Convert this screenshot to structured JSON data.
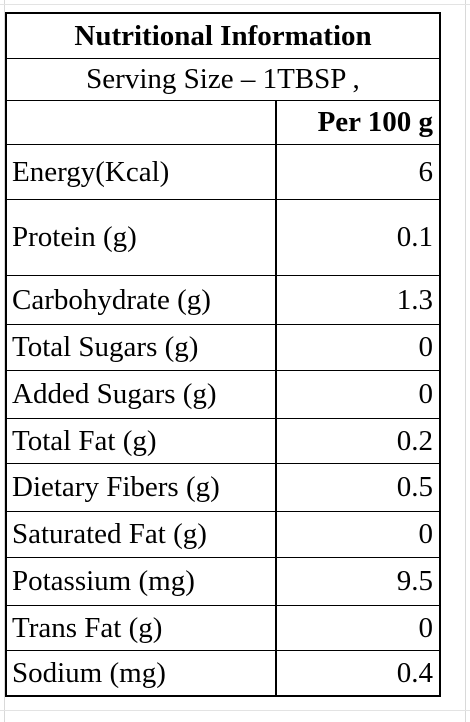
{
  "table": {
    "title": "Nutritional Information",
    "serving": "Serving Size – 1TBSP ,",
    "header_label": "",
    "header_value": "Per 100 g",
    "rows": [
      {
        "label": "Energy(Kcal)",
        "value": "6"
      },
      {
        "label": "Protein (g)",
        "value": "0.1"
      },
      {
        "label": "Carbohydrate (g)",
        "value": "1.3"
      },
      {
        "label": "Total Sugars (g)",
        "value": "0"
      },
      {
        "label": "Added Sugars (g)",
        "value": "0"
      },
      {
        "label": "Total Fat (g)",
        "value": "0.2"
      },
      {
        "label": "Dietary Fibers (g)",
        "value": "0.5"
      },
      {
        "label": "Saturated Fat (g)",
        "value": "0"
      },
      {
        "label": "Potassium (mg)",
        "value": "9.5"
      },
      {
        "label": "Trans Fat (g)",
        "value": "0"
      },
      {
        "label": "Sodium (mg)",
        "value": "0.4"
      }
    ]
  }
}
